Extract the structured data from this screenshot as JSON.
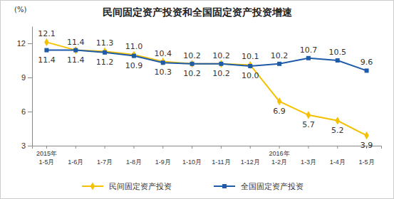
{
  "chart_data": {
    "type": "line",
    "title": "民间固定资产投资和全国固定资产投资增速",
    "y_label": "(%)",
    "categories": [
      "2015年\n1-5月",
      "1-6月",
      "1-7月",
      "1-8月",
      "1-9月",
      "1-10月",
      "1-11月",
      "1-12月",
      "2016年\n1-2月",
      "1-3月",
      "1-4月",
      "1-5月"
    ],
    "series": [
      {
        "name": "民间固定资产投资",
        "color": "#f5c000",
        "marker": "diamond",
        "values": [
          12.1,
          11.4,
          11.3,
          11.0,
          10.4,
          10.2,
          10.2,
          10.1,
          6.9,
          5.7,
          5.2,
          3.9
        ],
        "value_labels": [
          "12.1",
          "11.4",
          "11.3",
          "11.0",
          "10.4",
          "10.2",
          "10.2",
          "10.1",
          "6.9",
          "5.7",
          "5.2",
          "3.9"
        ]
      },
      {
        "name": "全国固定资产投资",
        "color": "#1e5ba8",
        "marker": "square",
        "values": [
          11.4,
          11.4,
          11.2,
          10.9,
          10.3,
          10.2,
          10.2,
          10.0,
          10.2,
          10.7,
          10.5,
          9.6
        ],
        "value_labels": [
          "11.4",
          "11.4",
          "11.2",
          "10.9",
          "10.3",
          "10.2",
          "10.2",
          "10.0",
          "10.2",
          "10.7",
          "10.5",
          "9.6"
        ]
      }
    ],
    "ylim": [
      3,
      13.5
    ],
    "yticks": [
      3,
      6,
      9,
      12
    ],
    "grid": false,
    "data_labels": true,
    "legend": "bottom"
  }
}
